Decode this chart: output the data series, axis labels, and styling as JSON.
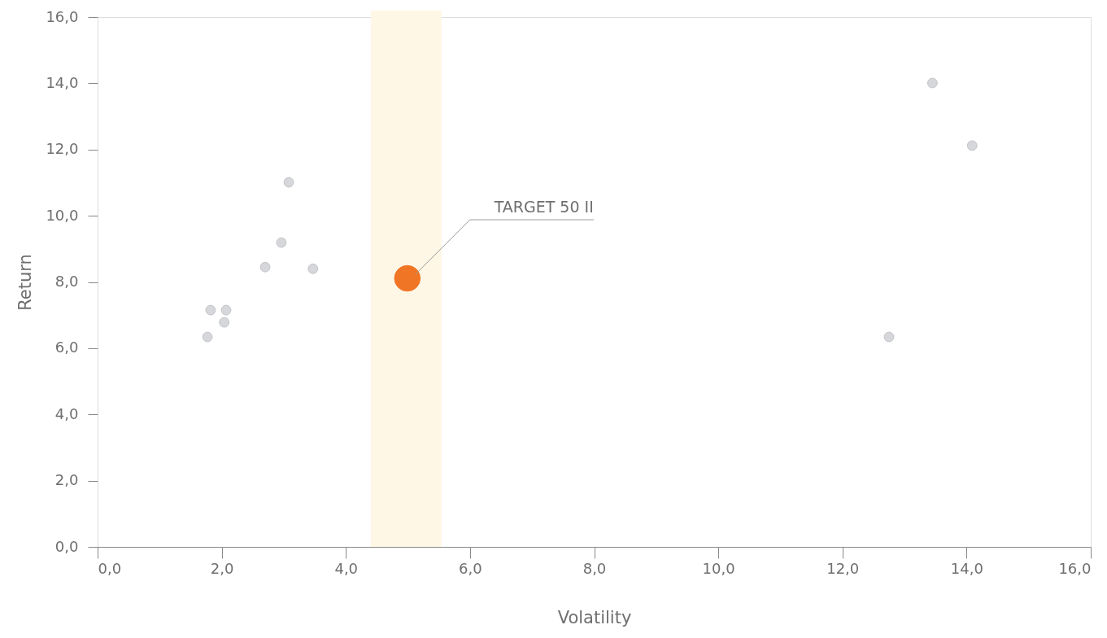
{
  "chart_data": {
    "type": "scatter",
    "xlabel": "Volatility",
    "ylabel": "Return",
    "series": [
      {
        "color": "#d6d7da",
        "x": [
          1.77,
          1.82,
          2.04,
          2.07,
          2.7,
          2.96,
          3.08,
          3.47,
          12.75,
          13.45,
          14.09
        ],
        "values": [
          6.34,
          7.15,
          6.78,
          7.15,
          8.45,
          9.19,
          11.01,
          8.4,
          6.34,
          14.01,
          12.12
        ]
      },
      {
        "color": "#f07524",
        "x": [
          4.99
        ],
        "values": [
          8.11
        ]
      }
    ],
    "annotations": [
      "TARGET 50 II"
    ],
    "bands": [
      {
        "axis": "x",
        "from": 4.4,
        "to": 5.54,
        "color": "#fff7e6"
      }
    ],
    "xlim": [
      0,
      16
    ],
    "ylim": [
      0,
      16
    ],
    "xticks": [
      {
        "value": 0,
        "label": "0,0"
      },
      {
        "value": 2,
        "label": "2,0"
      },
      {
        "value": 4,
        "label": "4,0"
      },
      {
        "value": 6,
        "label": "6,0"
      },
      {
        "value": 8,
        "label": "8,0"
      },
      {
        "value": 10,
        "label": "10,0"
      },
      {
        "value": 12,
        "label": "12,0"
      },
      {
        "value": 14,
        "label": "14,0"
      },
      {
        "value": 16,
        "label": "16,0"
      }
    ],
    "yticks": [
      {
        "value": 0,
        "label": "0,0"
      },
      {
        "value": 2,
        "label": "2,0"
      },
      {
        "value": 4,
        "label": "4,0"
      },
      {
        "value": 6,
        "label": "6,0"
      },
      {
        "value": 8,
        "label": "8,0"
      },
      {
        "value": 10,
        "label": "10,0"
      },
      {
        "value": 12,
        "label": "12,0"
      },
      {
        "value": 14,
        "label": "14,0"
      },
      {
        "value": 16,
        "label": "16,0"
      }
    ],
    "grid": false,
    "marker": "circle"
  }
}
